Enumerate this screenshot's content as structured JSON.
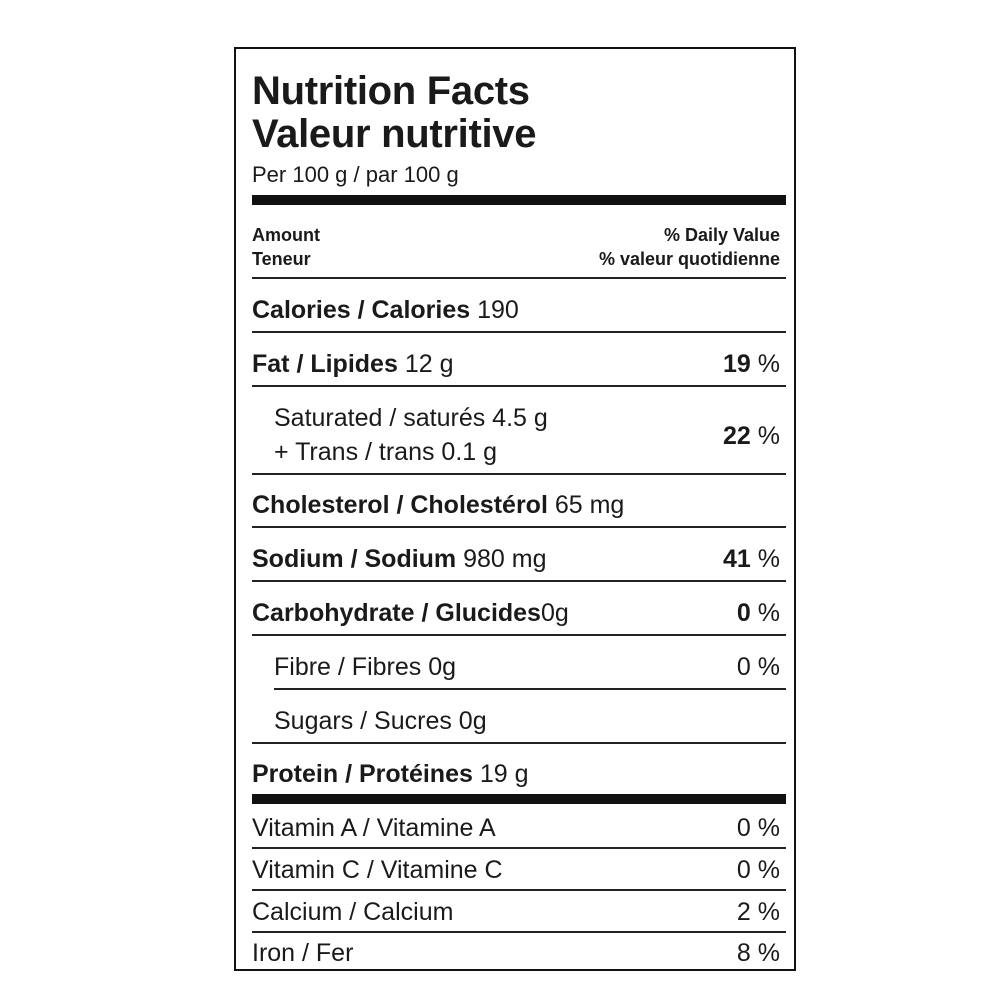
{
  "label": {
    "title_en": "Nutrition Facts",
    "title_fr": "Valeur nutritive",
    "serving": "Per 100  g / par 100  g",
    "header": {
      "amount_en": "Amount",
      "amount_fr": "Teneur",
      "dv_en": "% Daily Value",
      "dv_fr": "% valeur quotidienne"
    },
    "calories": {
      "name": "Calories / Calories",
      "amount": "190"
    },
    "fat": {
      "name": "Fat / Lipides",
      "amount": "12 g",
      "pct": "19",
      "unit": "%"
    },
    "saturated": {
      "line1": "Saturated / saturés 4.5 g",
      "line2": "+ Trans / trans 0.1 g",
      "pct": "22",
      "unit": "%"
    },
    "cholesterol": {
      "name": "Cholesterol / Cholestérol",
      "amount": "65 mg"
    },
    "sodium": {
      "name": "Sodium / Sodium",
      "amount": "980 mg",
      "pct": "41",
      "unit": "%"
    },
    "carbohydrate": {
      "name": "Carbohydrate / Glucides",
      "amount": "0g",
      "pct": "0",
      "unit": "%"
    },
    "fibre": {
      "text": "Fibre / Fibres 0g",
      "pct": "0 %"
    },
    "sugars": {
      "text": "Sugars / Sucres 0g"
    },
    "protein": {
      "name": "Protein / Protéines",
      "amount": "19 g"
    },
    "vitamins": [
      {
        "name": "Vitamin A / Vitamine A",
        "pct": "0 %"
      },
      {
        "name": "Vitamin C / Vitamine C",
        "pct": "0 %"
      },
      {
        "name": "Calcium / Calcium",
        "pct": "2 %"
      },
      {
        "name": "Iron / Fer",
        "pct": "8 %"
      }
    ]
  }
}
